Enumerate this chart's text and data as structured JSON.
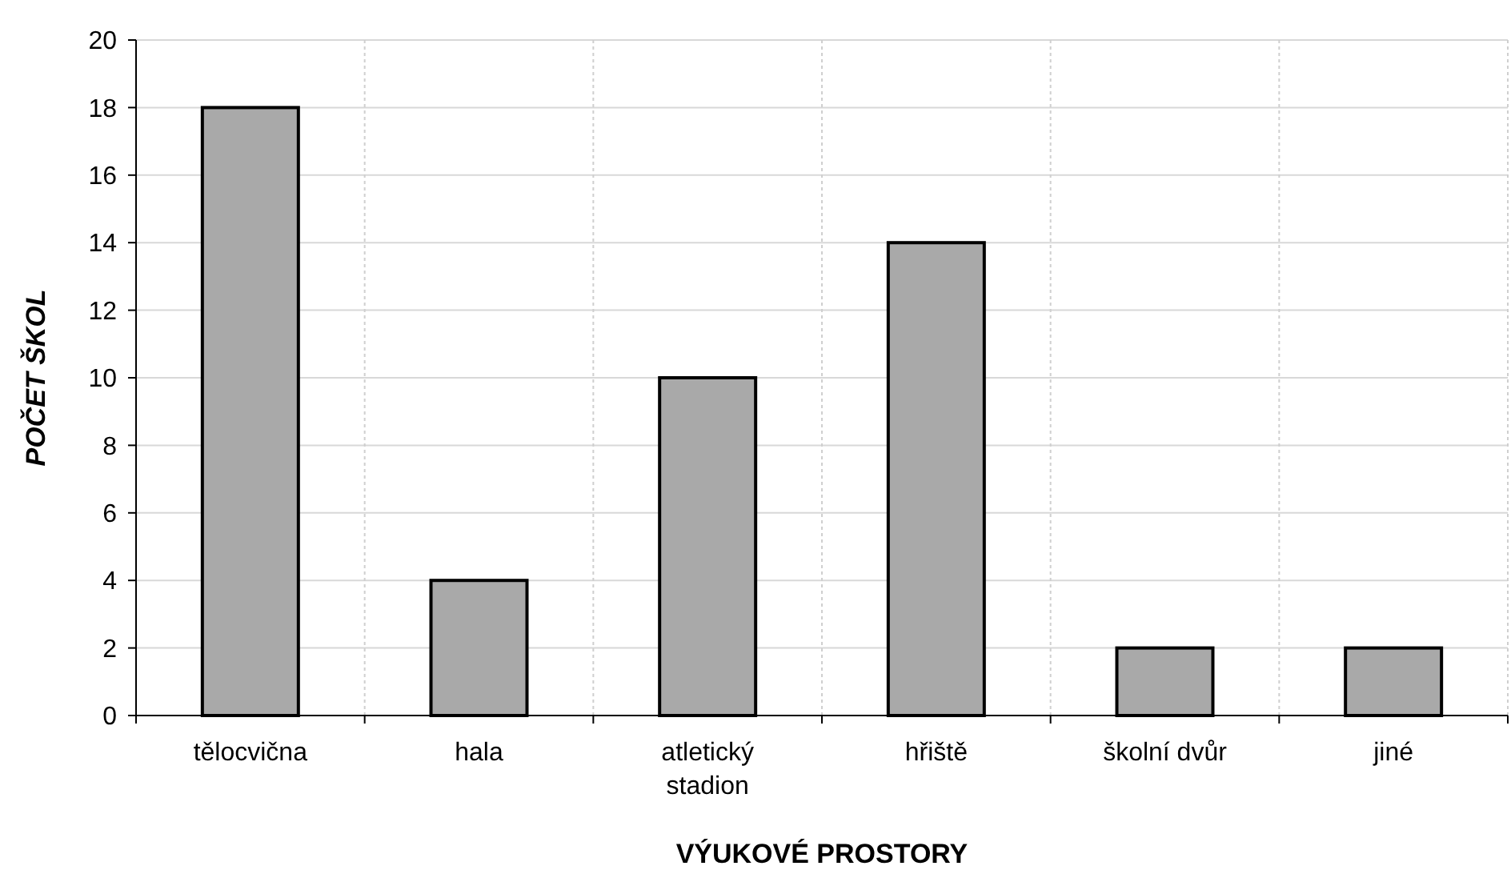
{
  "chart_data": {
    "type": "bar",
    "xlabel": "VÝUKOVÉ PROSTORY",
    "ylabel": "POČET ŠKOL",
    "categories": [
      "tělocvična",
      "hala",
      "atletický stadion",
      "hřiště",
      "školní dvůr",
      "jiné"
    ],
    "values": [
      18,
      4,
      10,
      14,
      2,
      2
    ],
    "color": "#a9a9a9",
    "ylim": [
      0,
      20
    ],
    "yticks": [
      0,
      2,
      4,
      6,
      8,
      10,
      12,
      14,
      16,
      18,
      20
    ],
    "grid": true
  }
}
